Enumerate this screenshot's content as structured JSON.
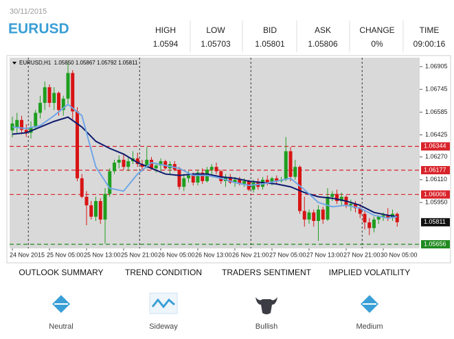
{
  "header": {
    "date": "30/11/2015",
    "symbol": "EURUSD",
    "stats": [
      {
        "label": "HIGH",
        "value": "1.0594"
      },
      {
        "label": "LOW",
        "value": "1.05703"
      },
      {
        "label": "BID",
        "value": "1.05801"
      },
      {
        "label": "ASK",
        "value": "1.05806"
      },
      {
        "label": "CHANGE",
        "value": "0%"
      },
      {
        "label": "TIME",
        "value": "09:00:16"
      }
    ]
  },
  "chart_data": {
    "type": "candlestick",
    "info": "EURUSD,H1  1.05850 1.05867 1.05792 1.05811",
    "ylim": [
      1.05627,
      1.06968
    ],
    "yticks": [
      1.06905,
      1.06745,
      1.06585,
      1.06425,
      {
        "value": 1.0627,
        "label": "1.06270"
      },
      {
        "value": 1.0611,
        "label": "1.06110"
      },
      {
        "value": 1.0595,
        "label": "1.05950"
      }
    ],
    "up_color": "#1f9e1f",
    "down_color": "#d81414",
    "categories": [
      "24 Nov 2015",
      null,
      null,
      null,
      null,
      null,
      null,
      null,
      "25 Nov 05:00",
      null,
      null,
      null,
      null,
      null,
      null,
      null,
      "25 Nov 13:00",
      null,
      null,
      null,
      null,
      null,
      null,
      null,
      "25 Nov 21:00",
      null,
      null,
      null,
      null,
      null,
      null,
      null,
      "26 Nov 05:00",
      null,
      null,
      null,
      null,
      null,
      null,
      null,
      "26 Nov 13:00",
      null,
      null,
      null,
      null,
      null,
      null,
      null,
      "26 Nov 21:00",
      null,
      null,
      null,
      null,
      null,
      null,
      null,
      "27 Nov 05:00",
      null,
      null,
      null,
      null,
      null,
      null,
      null,
      "27 Nov 13:00",
      null,
      null,
      null,
      null,
      null,
      null,
      null,
      "27 Nov 21:00",
      null,
      null,
      null,
      null,
      null,
      null,
      null,
      "30 Nov 05:00",
      null,
      null,
      null
    ],
    "candles": [
      [
        1.06456,
        1.06553,
        1.06408,
        1.06505
      ],
      [
        1.0648,
        1.0658,
        1.0644,
        1.0653
      ],
      [
        1.0653,
        1.0656,
        1.0643,
        1.0646
      ],
      [
        1.0646,
        1.065,
        1.0641,
        1.0644
      ],
      [
        1.0644,
        1.0652,
        1.064,
        1.0648
      ],
      [
        1.0648,
        1.066,
        1.0646,
        1.0658
      ],
      [
        1.0658,
        1.067,
        1.0654,
        1.0665
      ],
      [
        1.0665,
        1.068,
        1.066,
        1.0676
      ],
      [
        1.0676,
        1.0678,
        1.0662,
        1.0665
      ],
      [
        1.0665,
        1.0676,
        1.066,
        1.0672
      ],
      [
        1.0672,
        1.0673,
        1.0656,
        1.066
      ],
      [
        1.066,
        1.067,
        1.0656,
        1.0668
      ],
      [
        1.0668,
        1.0693,
        1.0664,
        1.0686
      ],
      [
        1.0686,
        1.0688,
        1.0653,
        1.0659
      ],
      [
        1.0659,
        1.0662,
        1.061,
        1.0612
      ],
      [
        1.0612,
        1.0615,
        1.0598,
        1.0599
      ],
      [
        1.0599,
        1.0603,
        1.0579,
        1.0593
      ],
      [
        1.0593,
        1.0596,
        1.0583,
        1.0585
      ],
      [
        1.0585,
        1.0599,
        1.0582,
        1.0596
      ],
      [
        1.0596,
        1.0598,
        1.058,
        1.0583
      ],
      [
        1.0583,
        1.0605,
        1.05661,
        1.0601
      ],
      [
        1.0601,
        1.0619,
        1.0599,
        1.0617
      ],
      [
        1.0617,
        1.0625,
        1.0615,
        1.0623
      ],
      [
        1.0623,
        1.0628,
        1.0619,
        1.0625
      ],
      [
        1.0625,
        1.0629,
        1.0618,
        1.062
      ],
      [
        1.062,
        1.0627,
        1.0617,
        1.0624
      ],
      [
        1.0624,
        1.0631,
        1.0622,
        1.0626
      ],
      [
        1.0626,
        1.063,
        1.062,
        1.0622
      ],
      [
        1.0622,
        1.0625,
        1.0617,
        1.062
      ],
      [
        1.062,
        1.0634,
        1.0619,
        1.0625
      ],
      [
        1.0625,
        1.0627,
        1.0618,
        1.0619
      ],
      [
        1.0619,
        1.0623,
        1.0616,
        1.0621
      ],
      [
        1.0621,
        1.0626,
        1.0617,
        1.0624
      ],
      [
        1.0624,
        1.0625,
        1.0618,
        1.0619
      ],
      [
        1.0619,
        1.0624,
        1.0615,
        1.0622
      ],
      [
        1.0622,
        1.0624,
        1.0617,
        1.0618
      ],
      [
        1.0618,
        1.062,
        1.0604,
        1.0606
      ],
      [
        1.0606,
        1.0615,
        1.0603,
        1.0612
      ],
      [
        1.0612,
        1.0617,
        1.0609,
        1.0614
      ],
      [
        1.0614,
        1.0616,
        1.0607,
        1.0609
      ],
      [
        1.0609,
        1.0618,
        1.0607,
        1.0616
      ],
      [
        1.0616,
        1.0619,
        1.0608,
        1.061
      ],
      [
        1.061,
        1.062,
        1.0609,
        1.0618
      ],
      [
        1.0618,
        1.0622,
        1.0613,
        1.062
      ],
      [
        1.062,
        1.0623,
        1.0615,
        1.0617
      ],
      [
        1.0617,
        1.0618,
        1.0608,
        1.061
      ],
      [
        1.061,
        1.0615,
        1.0606,
        1.0613
      ],
      [
        1.0613,
        1.0615,
        1.0608,
        1.0609
      ],
      [
        1.0609,
        1.0613,
        1.0606,
        1.0611
      ],
      [
        1.0611,
        1.0613,
        1.0607,
        1.0608
      ],
      [
        1.0608,
        1.0612,
        1.0606,
        1.061
      ],
      [
        1.061,
        1.0611,
        1.0603,
        1.0604
      ],
      [
        1.0604,
        1.0611,
        1.0602,
        1.0609
      ],
      [
        1.0609,
        1.0612,
        1.0604,
        1.0606
      ],
      [
        1.0606,
        1.0613,
        1.0604,
        1.0611
      ],
      [
        1.0611,
        1.0614,
        1.0607,
        1.0609
      ],
      [
        1.0609,
        1.0613,
        1.0607,
        1.0612
      ],
      [
        1.0612,
        1.0614,
        1.0608,
        1.061
      ],
      [
        1.061,
        1.0613,
        1.0609,
        1.0611
      ],
      [
        1.0611,
        1.0641,
        1.061,
        1.0631
      ],
      [
        1.0631,
        1.0634,
        1.061,
        1.0613
      ],
      [
        1.0613,
        1.0625,
        1.0611,
        1.062
      ],
      [
        1.062,
        1.0621,
        1.0587,
        1.0589
      ],
      [
        1.0589,
        1.0599,
        1.0578,
        1.0583
      ],
      [
        1.0583,
        1.059,
        1.058,
        1.0588
      ],
      [
        1.0588,
        1.059,
        1.0578,
        1.0582
      ],
      [
        1.0582,
        1.0593,
        1.0568,
        1.059
      ],
      [
        1.059,
        1.0592,
        1.058,
        1.0583
      ],
      [
        1.0583,
        1.0605,
        1.0582,
        1.0599
      ],
      [
        1.0599,
        1.0603,
        1.0596,
        1.0601
      ],
      [
        1.0601,
        1.0604,
        1.0594,
        1.0596
      ],
      [
        1.0596,
        1.0602,
        1.0593,
        1.0599
      ],
      [
        1.0599,
        1.06,
        1.0591,
        1.0593
      ],
      [
        1.0593,
        1.0597,
        1.0589,
        1.0594
      ],
      [
        1.0594,
        1.0596,
        1.0588,
        1.0591
      ],
      [
        1.0591,
        1.0594,
        1.0584,
        1.0587
      ],
      [
        1.0587,
        1.059,
        1.0576,
        1.0581
      ],
      [
        1.0581,
        1.0584,
        1.0572,
        1.0577
      ],
      [
        1.0577,
        1.0585,
        1.0574,
        1.0583
      ],
      [
        1.0583,
        1.0586,
        1.058,
        1.0585
      ],
      [
        1.0585,
        1.0588,
        1.0582,
        1.0586
      ],
      [
        1.0586,
        1.0591,
        1.0582,
        1.0584
      ],
      [
        1.0584,
        1.059,
        1.0582,
        1.0587
      ],
      [
        1.0587,
        1.0588,
        1.0578,
        1.05811
      ]
    ],
    "series": [
      {
        "color": "#0d1a6e",
        "x": [
          0,
          3,
          6,
          9,
          12,
          15,
          18,
          21,
          24,
          27,
          30,
          33,
          36,
          39,
          42,
          45,
          48,
          51,
          54,
          57,
          60,
          63,
          66,
          69,
          72,
          75,
          78,
          81,
          83
        ],
        "values": [
          1.0643,
          1.0644,
          1.0648,
          1.0652,
          1.0655,
          1.0648,
          1.0638,
          1.0633,
          1.0629,
          1.0623,
          1.0619,
          1.0615,
          1.0614,
          1.0615,
          1.0615,
          1.0613,
          1.0612,
          1.061,
          1.0609,
          1.0608,
          1.0606,
          1.0602,
          1.0599,
          1.0598,
          1.0596,
          1.0593,
          1.0588,
          1.0586,
          1.0585
        ]
      },
      {
        "color": "#6fa6e6",
        "x": [
          0,
          3,
          6,
          9,
          12,
          15,
          18,
          21,
          24,
          27,
          30,
          33,
          36,
          39,
          42,
          45,
          48,
          51,
          54,
          57,
          60,
          63,
          66,
          69,
          72,
          75,
          78,
          81,
          83
        ],
        "values": [
          1.0648,
          1.0647,
          1.0649,
          1.0656,
          1.0664,
          1.0656,
          1.062,
          1.0605,
          1.0603,
          1.0615,
          1.0623,
          1.0621,
          1.0619,
          1.0614,
          1.0614,
          1.0612,
          1.0609,
          1.0607,
          1.0608,
          1.061,
          1.0612,
          1.0604,
          1.0595,
          1.0592,
          1.0593,
          1.0591,
          1.0586,
          1.0584,
          1.0585
        ]
      }
    ],
    "levels": [
      {
        "value": 1.06344,
        "color": "#d9232a"
      },
      {
        "value": 1.06177,
        "color": "#d9232a"
      },
      {
        "value": 1.06006,
        "color": "#d9232a"
      },
      {
        "value": 1.05656,
        "color": "#1f8a1f"
      }
    ],
    "last": 1.05811
  },
  "panels": [
    {
      "title": "OUTLOOK SUMMARY",
      "label": "Neutral"
    },
    {
      "title": "TREND CONDITION",
      "label": "Sideway"
    },
    {
      "title": "TRADERS SENTIMENT",
      "label": "Bullish"
    },
    {
      "title": "IMPLIED VOLATILITY",
      "label": "Medium"
    }
  ]
}
